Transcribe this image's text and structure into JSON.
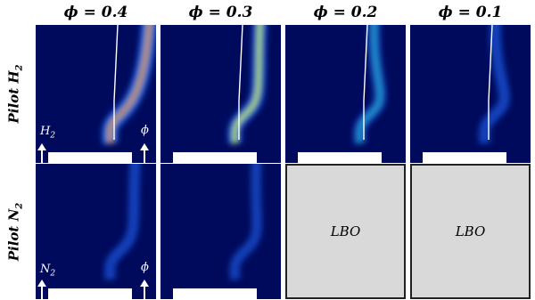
{
  "columns": [
    {
      "label": "ϕ = 0.4",
      "intensity": 1.0
    },
    {
      "label": "ϕ = 0.3",
      "intensity": 0.72
    },
    {
      "label": "ϕ = 0.2",
      "intensity": 0.45
    },
    {
      "label": "ϕ = 0.1",
      "intensity": 0.32
    }
  ],
  "rows": [
    {
      "label_main": "Pilot H",
      "label_sub": "2"
    },
    {
      "label_main": "Pilot N",
      "label_sub": "2"
    }
  ],
  "row2_intensities": [
    0.28,
    0.2
  ],
  "lbo_label": "LBO",
  "inlet_labels": {
    "h2_main": "H",
    "h2_sub": "2",
    "n2_main": "N",
    "n2_sub": "2",
    "phi": "ϕ"
  },
  "colors": {
    "background": "#000a5c",
    "lbo_fill": "#d9d9d9",
    "flame_low": "#1f5ff0",
    "flame_high": "#c41a0a"
  }
}
